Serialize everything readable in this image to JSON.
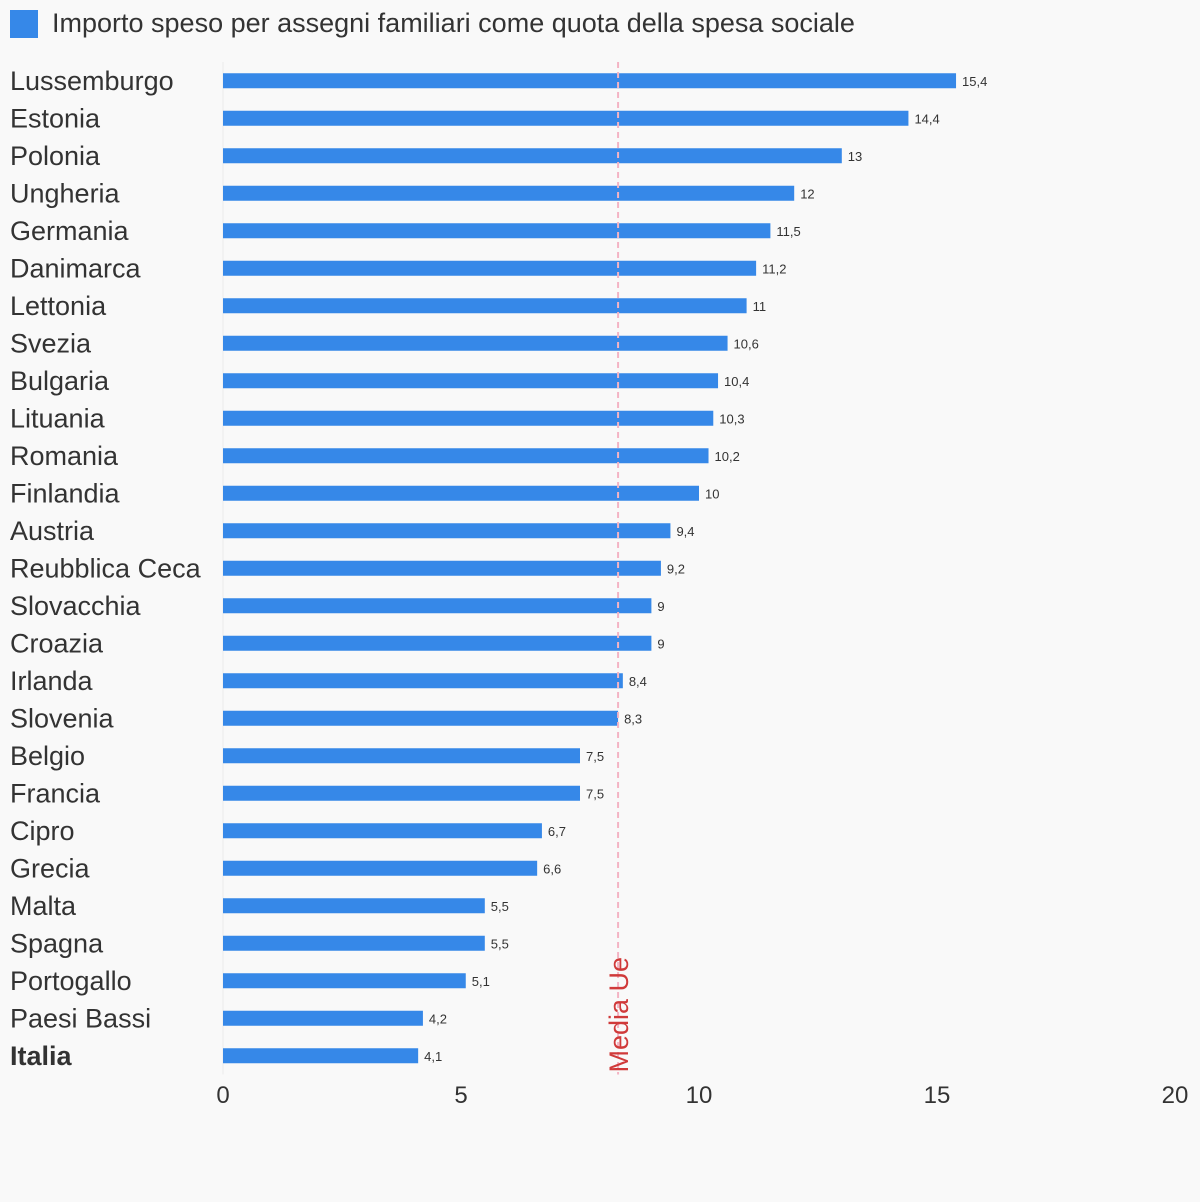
{
  "legend": {
    "label": "Importo speso per assegni familiari come quota della spesa sociale",
    "color": "#3688e8"
  },
  "chart_data": {
    "type": "bar",
    "orientation": "horizontal",
    "title": "",
    "xlabel": "",
    "ylabel": "",
    "xlim": [
      0,
      20
    ],
    "x_ticks": [
      "0",
      "5",
      "10",
      "15",
      "20"
    ],
    "grid": false,
    "legend_position": "top-left",
    "bar_color": "#3688e8",
    "highlight_category": "Italia",
    "categories": [
      "Lussemburgo",
      "Estonia",
      "Polonia",
      "Ungheria",
      "Germania",
      "Danimarca",
      "Lettonia",
      "Svezia",
      "Bulgaria",
      "Lituania",
      "Romania",
      "Finlandia",
      "Austria",
      "Reubblica Ceca",
      "Slovacchia",
      "Croazia",
      "Irlanda",
      "Slovenia",
      "Belgio",
      "Francia",
      "Cipro",
      "Grecia",
      "Malta",
      "Spagna",
      "Portogallo",
      "Paesi Bassi",
      "Italia"
    ],
    "series": [
      {
        "name": "Importo speso per assegni familiari come quota della spesa sociale",
        "values": [
          15.4,
          14.4,
          13,
          12,
          11.5,
          11.2,
          11,
          10.6,
          10.4,
          10.3,
          10.2,
          10,
          9.4,
          9.2,
          9,
          9,
          8.4,
          8.3,
          7.5,
          7.5,
          6.7,
          6.6,
          5.5,
          5.5,
          5.1,
          4.2,
          4.1
        ],
        "value_labels": [
          "15,4",
          "14,4",
          "13",
          "12",
          "11,5",
          "11,2",
          "11",
          "10,6",
          "10,4",
          "10,3",
          "10,2",
          "10",
          "9,4",
          "9,2",
          "9",
          "9",
          "8,4",
          "8,3",
          "7,5",
          "7,5",
          "6,7",
          "6,6",
          "5,5",
          "5,5",
          "5,1",
          "4,2",
          "4,1"
        ]
      }
    ],
    "reference_line": {
      "label": "Media Ue",
      "value": 8.3,
      "color": "#d03a3a",
      "line_color": "#f4b4c4"
    }
  }
}
